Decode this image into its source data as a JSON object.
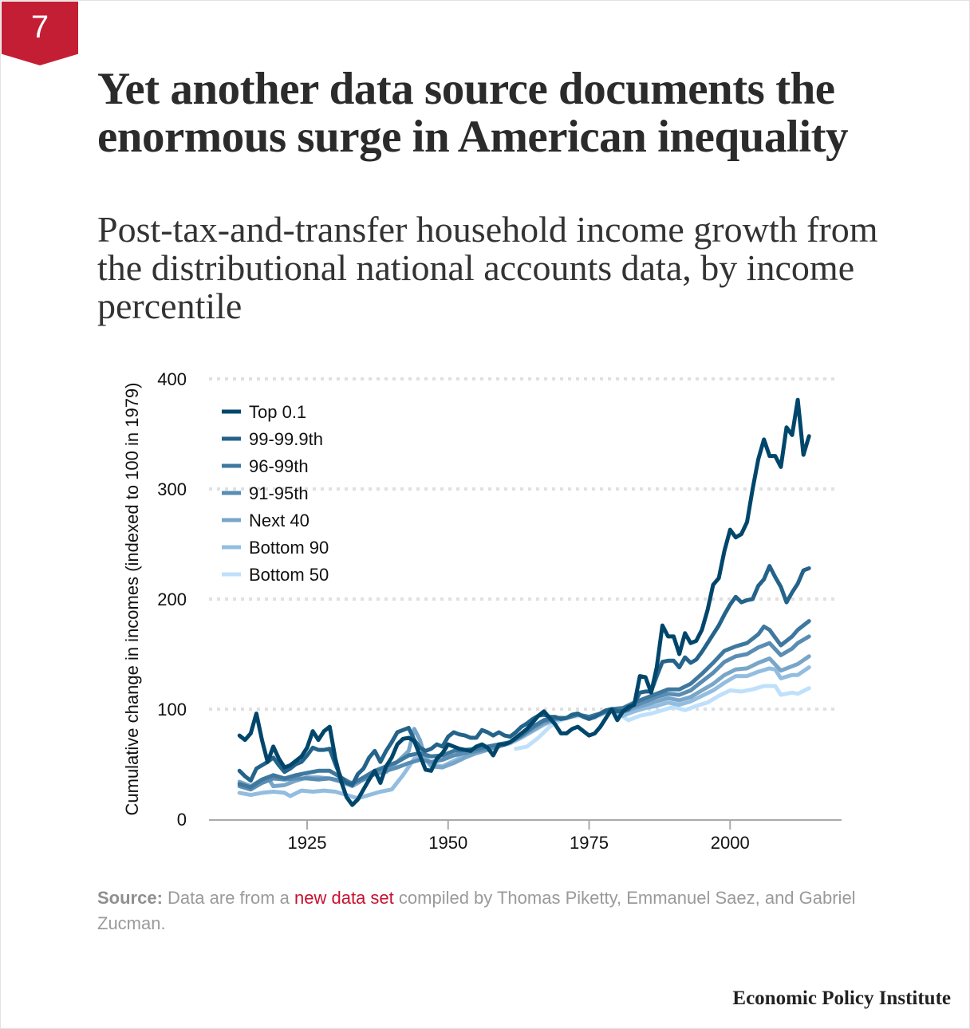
{
  "badge": "7",
  "title": "Yet another data source documents the enormous surge in American inequality",
  "subtitle": "Post-tax-and-transfer household income growth from the distributional national accounts data, by income percentile",
  "source": {
    "label": "Source:",
    "text_before": "Data are from a",
    "link": "new data set",
    "text_after": "compiled by Thomas Piketty, Emmanuel Saez, and Gabriel Zucman."
  },
  "footer": "Economic Policy Institute",
  "chart_data": {
    "type": "line",
    "ylabel": "Cumulative change in incomes (indexed to 100 in 1979)",
    "xlabel": "",
    "ylim": [
      0,
      400
    ],
    "xlim": [
      1910,
      2020
    ],
    "yticks": [
      0,
      100,
      200,
      300,
      400
    ],
    "xticks": [
      1925,
      1950,
      1975,
      2000
    ],
    "grid": "horizontal dotted",
    "legend": "top-left",
    "series": [
      {
        "name": "Top 0.1",
        "color": "#00466b",
        "x": [
          1913,
          1914,
          1915,
          1916,
          1917,
          1918,
          1919,
          1920,
          1921,
          1922,
          1923,
          1924,
          1925,
          1926,
          1927,
          1928,
          1929,
          1930,
          1931,
          1932,
          1933,
          1934,
          1935,
          1936,
          1937,
          1938,
          1939,
          1940,
          1941,
          1942,
          1943,
          1944,
          1945,
          1946,
          1947,
          1948,
          1949,
          1950,
          1951,
          1952,
          1953,
          1954,
          1955,
          1956,
          1957,
          1958,
          1959,
          1960,
          1961,
          1962,
          1963,
          1964,
          1965,
          1966,
          1967,
          1968,
          1969,
          1970,
          1971,
          1972,
          1973,
          1974,
          1975,
          1976,
          1977,
          1978,
          1979,
          1980,
          1981,
          1982,
          1983,
          1984,
          1985,
          1986,
          1987,
          1988,
          1989,
          1990,
          1991,
          1992,
          1993,
          1994,
          1995,
          1996,
          1997,
          1998,
          1999,
          2000,
          2001,
          2002,
          2003,
          2004,
          2005,
          2006,
          2007,
          2008,
          2009,
          2010,
          2011,
          2012,
          2013,
          2014
        ],
        "y": [
          76,
          72,
          78,
          96,
          72,
          52,
          66,
          55,
          47,
          49,
          53,
          57,
          65,
          80,
          72,
          80,
          84,
          55,
          35,
          20,
          13,
          18,
          27,
          36,
          44,
          33,
          48,
          56,
          68,
          73,
          74,
          71,
          58,
          45,
          44,
          55,
          60,
          68,
          66,
          64,
          63,
          62,
          66,
          68,
          65,
          58,
          68,
          68,
          70,
          74,
          78,
          82,
          88,
          94,
          98,
          92,
          86,
          78,
          78,
          82,
          84,
          80,
          76,
          78,
          84,
          92,
          100,
          90,
          98,
          102,
          104,
          130,
          129,
          115,
          138,
          176,
          166,
          166,
          150,
          169,
          160,
          162,
          172,
          190,
          213,
          219,
          244,
          263,
          256,
          259,
          270,
          300,
          327,
          345,
          330,
          330,
          320,
          356,
          349,
          381,
          331,
          348
        ]
      },
      {
        "name": "99-99.9th",
        "color": "#24638a",
        "x": [
          1913,
          1914,
          1915,
          1916,
          1917,
          1918,
          1919,
          1920,
          1921,
          1922,
          1923,
          1924,
          1925,
          1926,
          1927,
          1928,
          1929,
          1930,
          1931,
          1932,
          1933,
          1934,
          1935,
          1936,
          1937,
          1938,
          1939,
          1940,
          1941,
          1942,
          1943,
          1944,
          1945,
          1946,
          1947,
          1948,
          1949,
          1950,
          1951,
          1952,
          1953,
          1954,
          1955,
          1956,
          1957,
          1958,
          1959,
          1960,
          1961,
          1962,
          1963,
          1964,
          1965,
          1966,
          1967,
          1968,
          1969,
          1970,
          1971,
          1972,
          1973,
          1974,
          1975,
          1976,
          1977,
          1978,
          1979,
          1980,
          1981,
          1982,
          1983,
          1984,
          1985,
          1986,
          1987,
          1988,
          1989,
          1990,
          1991,
          1992,
          1993,
          1994,
          1995,
          1996,
          1997,
          1998,
          1999,
          2000,
          2001,
          2002,
          2003,
          2004,
          2005,
          2006,
          2007,
          2008,
          2009,
          2010,
          2011,
          2012,
          2013,
          2014
        ],
        "y": [
          44,
          39,
          35,
          46,
          49,
          52,
          56,
          49,
          43,
          46,
          50,
          52,
          58,
          65,
          63,
          63,
          64,
          50,
          38,
          33,
          31,
          41,
          46,
          56,
          62,
          52,
          62,
          70,
          79,
          81,
          83,
          72,
          65,
          62,
          64,
          68,
          66,
          75,
          79,
          77,
          76,
          74,
          74,
          81,
          79,
          76,
          79,
          76,
          75,
          79,
          84,
          87,
          91,
          94,
          95,
          93,
          93,
          91,
          92,
          95,
          96,
          93,
          91,
          93,
          96,
          99,
          100,
          98,
          98,
          100,
          105,
          115,
          116,
          116,
          130,
          143,
          144,
          144,
          138,
          147,
          142,
          145,
          152,
          160,
          168,
          176,
          186,
          195,
          202,
          197,
          199,
          200,
          212,
          218,
          230,
          220,
          211,
          197,
          206,
          214,
          226,
          228
        ]
      },
      {
        "name": "96-99th",
        "color": "#3f789e",
        "x": [
          1913,
          1915,
          1917,
          1919,
          1921,
          1923,
          1925,
          1927,
          1929,
          1931,
          1933,
          1935,
          1937,
          1939,
          1941,
          1943,
          1945,
          1947,
          1949,
          1951,
          1953,
          1955,
          1957,
          1959,
          1961,
          1963,
          1965,
          1967,
          1969,
          1971,
          1973,
          1975,
          1977,
          1979,
          1981,
          1983,
          1985,
          1987,
          1989,
          1991,
          1993,
          1995,
          1997,
          1999,
          2001,
          2003,
          2005,
          2006,
          2007,
          2009,
          2011,
          2012,
          2014
        ],
        "y": [
          32,
          29,
          36,
          40,
          37,
          40,
          42,
          44,
          44,
          38,
          32,
          38,
          44,
          48,
          52,
          58,
          60,
          57,
          58,
          62,
          63,
          64,
          66,
          68,
          70,
          76,
          84,
          90,
          92,
          92,
          95,
          93,
          96,
          100,
          101,
          106,
          110,
          114,
          118,
          118,
          123,
          132,
          142,
          153,
          157,
          160,
          168,
          175,
          172,
          158,
          166,
          172,
          180
        ]
      },
      {
        "name": "91-95th",
        "color": "#5a8db3",
        "x": [
          1913,
          1915,
          1917,
          1919,
          1921,
          1923,
          1925,
          1927,
          1929,
          1931,
          1933,
          1935,
          1937,
          1939,
          1941,
          1943,
          1945,
          1947,
          1949,
          1951,
          1953,
          1955,
          1957,
          1959,
          1961,
          1963,
          1965,
          1967,
          1969,
          1971,
          1973,
          1975,
          1977,
          1979,
          1981,
          1983,
          1985,
          1987,
          1989,
          1991,
          1993,
          1995,
          1997,
          1999,
          2001,
          2003,
          2005,
          2007,
          2009,
          2011,
          2012,
          2014
        ],
        "y": [
          30,
          27,
          33,
          37,
          36,
          37,
          37,
          36,
          37,
          35,
          33,
          36,
          41,
          44,
          47,
          51,
          54,
          52,
          54,
          58,
          60,
          62,
          64,
          66,
          70,
          76,
          83,
          89,
          91,
          92,
          95,
          93,
          96,
          100,
          99,
          103,
          107,
          111,
          114,
          113,
          117,
          125,
          133,
          143,
          148,
          150,
          156,
          160,
          149,
          155,
          160,
          166
        ]
      },
      {
        "name": "Next 40",
        "color": "#78a6c9",
        "x": [
          1913,
          1915,
          1917,
          1918,
          1919,
          1921,
          1923,
          1925,
          1927,
          1929,
          1931,
          1933,
          1935,
          1937,
          1939,
          1941,
          1943,
          1944,
          1945,
          1946,
          1947,
          1949,
          1951,
          1953,
          1955,
          1957,
          1959,
          1961,
          1963,
          1965,
          1967,
          1969,
          1971,
          1973,
          1975,
          1977,
          1979,
          1981,
          1983,
          1985,
          1987,
          1989,
          1991,
          1993,
          1995,
          1997,
          1999,
          2001,
          2003,
          2005,
          2007,
          2009,
          2011,
          2012,
          2014
        ],
        "y": [
          34,
          30,
          36,
          38,
          30,
          31,
          35,
          38,
          38,
          37,
          34,
          30,
          36,
          41,
          43,
          52,
          62,
          82,
          72,
          55,
          48,
          47,
          51,
          56,
          60,
          63,
          67,
          70,
          75,
          81,
          87,
          91,
          92,
          95,
          92,
          95,
          100,
          97,
          101,
          104,
          107,
          110,
          108,
          111,
          117,
          123,
          131,
          136,
          137,
          142,
          146,
          135,
          139,
          141,
          148
        ]
      },
      {
        "name": "Bottom 90",
        "color": "#93bde0",
        "x": [
          1913,
          1915,
          1917,
          1919,
          1921,
          1922,
          1924,
          1926,
          1928,
          1930,
          1932,
          1934,
          1936,
          1938,
          1940,
          1942,
          1944,
          1946,
          1947,
          1949,
          1951,
          1953,
          1955,
          1957,
          1959,
          1961,
          1963,
          1965,
          1967,
          1969,
          1971,
          1973,
          1975,
          1977,
          1979,
          1981,
          1983,
          1985,
          1987,
          1989,
          1991,
          1993,
          1995,
          1997,
          1999,
          2001,
          2003,
          2005,
          2007,
          2008,
          2009,
          2011,
          2012,
          2014
        ],
        "y": [
          24,
          22,
          24,
          25,
          24,
          21,
          26,
          25,
          26,
          25,
          22,
          19,
          22,
          25,
          27,
          40,
          55,
          57,
          50,
          48,
          53,
          58,
          60,
          63,
          66,
          69,
          74,
          80,
          86,
          90,
          92,
          95,
          92,
          95,
          100,
          94,
          98,
          101,
          103,
          106,
          104,
          107,
          112,
          117,
          124,
          130,
          130,
          134,
          137,
          136,
          128,
          131,
          131,
          138
        ]
      },
      {
        "name": "Bottom 50",
        "color": "#bfe0fb",
        "x": [
          1962,
          1964,
          1966,
          1968,
          1970,
          1972,
          1974,
          1976,
          1979,
          1981,
          1982,
          1984,
          1986,
          1988,
          1990,
          1992,
          1994,
          1996,
          1998,
          2000,
          2002,
          2004,
          2006,
          2008,
          2009,
          2011,
          2012,
          2014
        ],
        "y": [
          64,
          66,
          74,
          84,
          90,
          93,
          94,
          92,
          100,
          93,
          90,
          94,
          96,
          99,
          102,
          99,
          103,
          106,
          112,
          117,
          116,
          118,
          121,
          121,
          113,
          115,
          114,
          119
        ]
      }
    ]
  }
}
